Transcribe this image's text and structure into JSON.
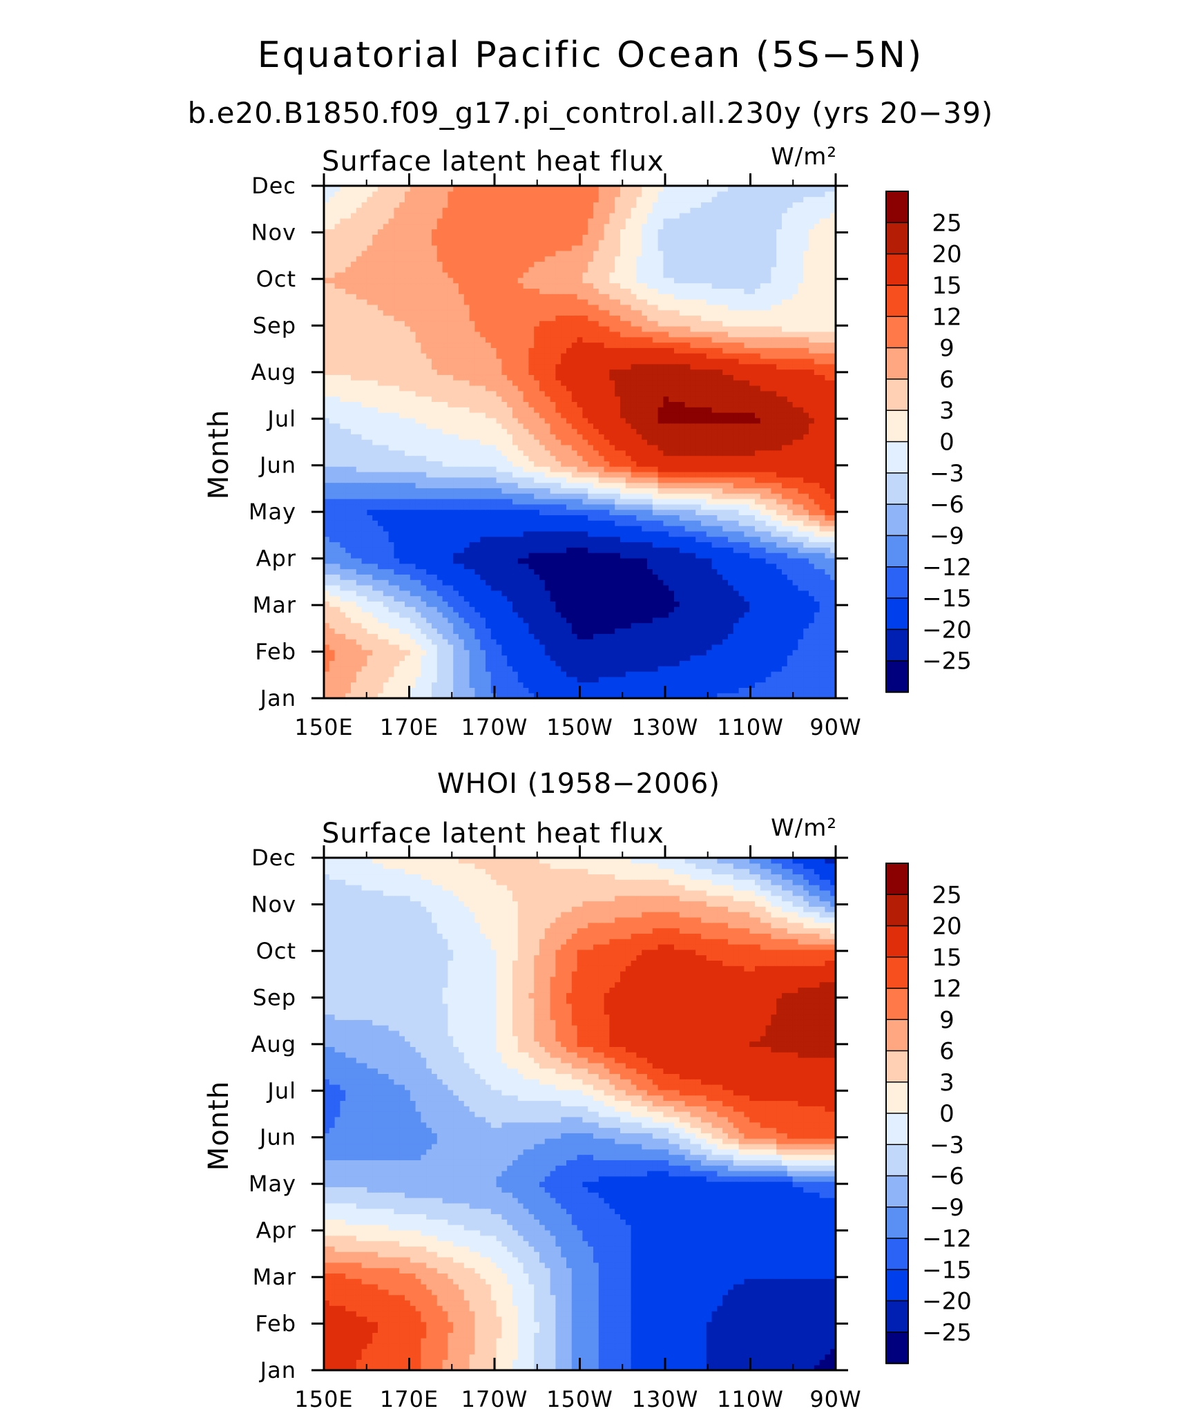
{
  "title": "Equatorial Pacific Ocean (5S−5N)",
  "colors": {
    "levels": [
      "#00007f",
      "#0020b4",
      "#0040ec",
      "#2a63f6",
      "#5a8ff4",
      "#8fb4f7",
      "#c2d8fa",
      "#e2efff",
      "#fff0de",
      "#ffd0b4",
      "#ffa780",
      "#ff7a48",
      "#f74f1e",
      "#e02e0a",
      "#b51d04",
      "#8b0000"
    ]
  },
  "chart_data": [
    {
      "type": "heatmap",
      "title": "b.e20.B1850.f09_g17.pi_control.all.230y (yrs 20−39)",
      "left_label": "Surface latent heat flux",
      "units_label": "W/m²",
      "xlabel": "",
      "ylabel": "Month",
      "x_ticks": [
        "150E",
        "170E",
        "170W",
        "150W",
        "130W",
        "110W",
        "90W"
      ],
      "x_range_lon": [
        150,
        270
      ],
      "y_ticks": [
        "Jan",
        "Feb",
        "Mar",
        "Apr",
        "May",
        "Jun",
        "Jul",
        "Aug",
        "Sep",
        "Oct",
        "Nov",
        "Dec"
      ],
      "colorbar_levels": [
        -25,
        -20,
        -15,
        -12,
        -9,
        -6,
        -3,
        0,
        3,
        6,
        9,
        12,
        15,
        20,
        25
      ],
      "colorbar_labels": [
        "25",
        "20",
        "15",
        "12",
        "9",
        "6",
        "3",
        "0",
        "−3",
        "−6",
        "−9",
        "−12",
        "−15",
        "−20",
        "−25"
      ],
      "grid_lon": [
        150,
        170,
        190,
        210,
        230,
        250,
        270
      ],
      "grid_month": [
        "Jan",
        "Feb",
        "Mar",
        "Apr",
        "May",
        "Jun",
        "Jul",
        "Aug",
        "Sep",
        "Oct",
        "Nov",
        "Dec"
      ],
      "values": [
        [
          8,
          0,
          -12,
          -18,
          -16,
          -14,
          -12
        ],
        [
          10,
          3,
          -14,
          -24,
          -22,
          -18,
          -12
        ],
        [
          4,
          -6,
          -18,
          -28,
          -26,
          -20,
          -14
        ],
        [
          -10,
          -16,
          -24,
          -28,
          -24,
          -16,
          -10
        ],
        [
          -14,
          -16,
          -16,
          -14,
          -8,
          -2,
          14
        ],
        [
          -6,
          -4,
          -2,
          8,
          18,
          18,
          18
        ],
        [
          -3,
          0,
          3,
          14,
          26,
          26,
          18
        ],
        [
          3,
          5,
          8,
          18,
          24,
          18,
          14
        ],
        [
          4,
          6,
          10,
          14,
          6,
          2,
          2
        ],
        [
          6,
          8,
          10,
          6,
          -3,
          -5,
          3
        ],
        [
          3,
          8,
          12,
          10,
          -4,
          -6,
          3
        ],
        [
          -2,
          6,
          12,
          12,
          0,
          -4,
          -4
        ]
      ]
    },
    {
      "type": "heatmap",
      "title": "WHOI (1958−2006)",
      "left_label": "Surface latent heat flux",
      "units_label": "W/m²",
      "xlabel": "",
      "ylabel": "Month",
      "x_ticks": [
        "150E",
        "170E",
        "170W",
        "150W",
        "130W",
        "110W",
        "90W"
      ],
      "x_range_lon": [
        150,
        270
      ],
      "y_ticks": [
        "Jan",
        "Feb",
        "Mar",
        "Apr",
        "May",
        "Jun",
        "Jul",
        "Aug",
        "Sep",
        "Oct",
        "Nov",
        "Dec"
      ],
      "colorbar_levels": [
        -25,
        -20,
        -15,
        -12,
        -9,
        -6,
        -3,
        0,
        3,
        6,
        9,
        12,
        15,
        20,
        25
      ],
      "colorbar_labels": [
        "25",
        "20",
        "15",
        "12",
        "9",
        "6",
        "3",
        "0",
        "−3",
        "−6",
        "−9",
        "−12",
        "−15",
        "−20",
        "−25"
      ],
      "grid_lon": [
        150,
        170,
        190,
        210,
        230,
        250,
        270
      ],
      "grid_month": [
        "Jan",
        "Feb",
        "Mar",
        "Apr",
        "May",
        "Jun",
        "Jul",
        "Aug",
        "Sep",
        "Oct",
        "Nov",
        "Dec"
      ],
      "values": [
        [
          16,
          13,
          3,
          -10,
          -18,
          -22,
          -26
        ],
        [
          17,
          14,
          4,
          -10,
          -18,
          -22,
          -24
        ],
        [
          13,
          10,
          2,
          -10,
          -18,
          -20,
          -20
        ],
        [
          2,
          0,
          -4,
          -12,
          -17,
          -17,
          -17
        ],
        [
          -6,
          -8,
          -9,
          -15,
          -18,
          -16,
          -14
        ],
        [
          -12,
          -10,
          -7,
          -10,
          -6,
          10,
          14
        ],
        [
          -13,
          -9,
          -3,
          0,
          12,
          16,
          16
        ],
        [
          -9,
          -6,
          0,
          12,
          20,
          20,
          22
        ],
        [
          -4,
          -5,
          0,
          14,
          18,
          18,
          24
        ],
        [
          -3,
          -6,
          0,
          12,
          16,
          13,
          12
        ],
        [
          -5,
          -4,
          2,
          6,
          8,
          4,
          -10
        ],
        [
          -2,
          2,
          4,
          2,
          -2,
          -10,
          -22
        ]
      ]
    }
  ]
}
